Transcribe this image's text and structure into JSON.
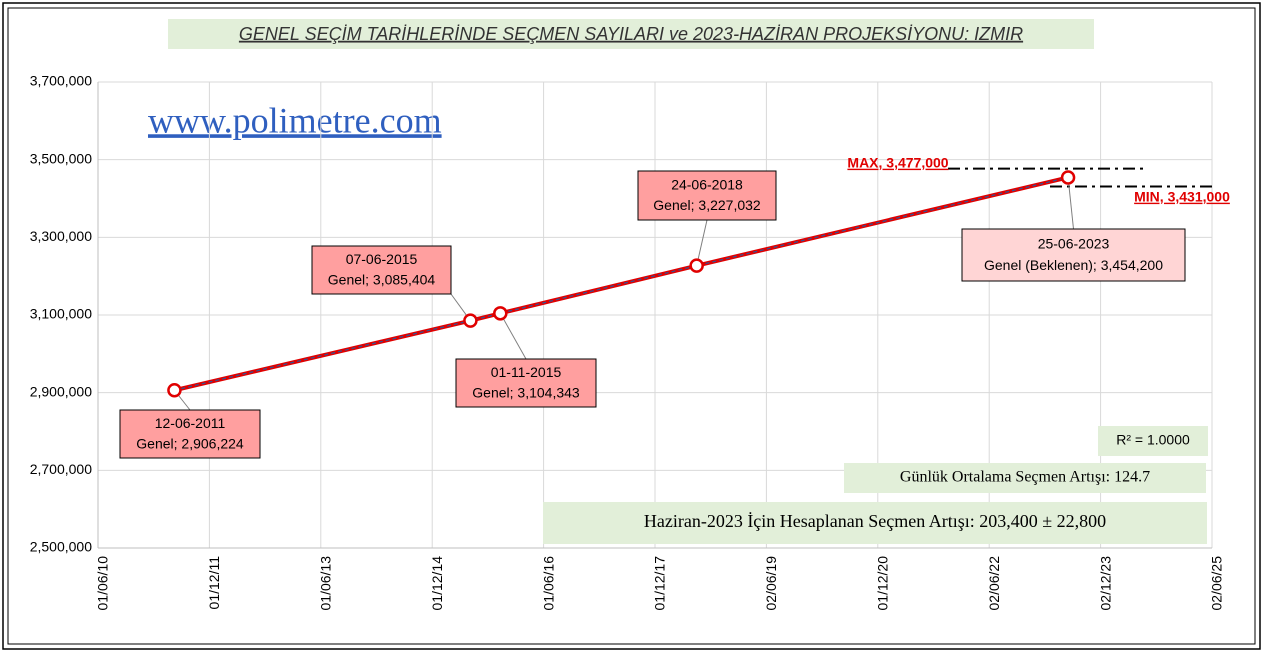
{
  "chart_data": {
    "type": "line",
    "title": "GENEL SEÇİM TARİHLERİNDE  SEÇMEN SAYILARI ve 2023-HAZİRAN PROJEKSİYONU: IZMIR",
    "watermark": "www.polimetre.com",
    "x": [
      "2011-06-12",
      "2015-06-07",
      "2015-11-01",
      "2018-06-24",
      "2023-06-25"
    ],
    "labels": [
      "12-06-2011",
      "07-06-2015",
      "01-11-2015",
      "24-06-2018",
      "25-06-2023"
    ],
    "series": [
      {
        "name": "Genel",
        "color": "#e00000",
        "values": [
          2906224,
          3085404,
          3104343,
          3227032,
          3454200
        ],
        "value_labels": [
          "Genel; 2,906,224",
          "Genel; 3,085,404",
          "Genel; 3,104,343",
          "Genel; 3,227,032",
          "Genel (Beklenen); 3,454,200"
        ]
      }
    ],
    "bounds": [
      {
        "label": "MAX, 3,477,000",
        "value": 3477000
      },
      {
        "label": "MIN, 3,431,000",
        "value": 3431000
      }
    ],
    "annotations": [
      "R² = 1.0000",
      "Günlük Ortalama Seçmen Artışı:  124.7",
      "Haziran-2023 İçin Hesaplanan Seçmen Artışı: 203,400 ± 22,800"
    ],
    "xlim": [
      "2010-06-01",
      "2025-06-02"
    ],
    "xticks": [
      {
        "value": "2010-06-01",
        "label": "01/06/10"
      },
      {
        "value": "2011-12-01",
        "label": "01/12/11"
      },
      {
        "value": "2013-06-01",
        "label": "01/06/13"
      },
      {
        "value": "2014-12-01",
        "label": "01/12/14"
      },
      {
        "value": "2016-06-01",
        "label": "01/06/16"
      },
      {
        "value": "2017-12-01",
        "label": "01/12/17"
      },
      {
        "value": "2019-06-02",
        "label": "02/06/19"
      },
      {
        "value": "2020-12-01",
        "label": "01/12/20"
      },
      {
        "value": "2022-06-02",
        "label": "02/06/22"
      },
      {
        "value": "2023-12-02",
        "label": "02/12/23"
      },
      {
        "value": "2025-06-02",
        "label": "02/06/25"
      }
    ],
    "ylim": [
      2500000,
      3700000
    ],
    "yticks": [
      {
        "value": 2500000,
        "label": "2,500,000"
      },
      {
        "value": 2700000,
        "label": "2,700,000"
      },
      {
        "value": 2900000,
        "label": "2,900,000"
      },
      {
        "value": 3100000,
        "label": "3,100,000"
      },
      {
        "value": 3300000,
        "label": "3,300,000"
      },
      {
        "value": 3500000,
        "label": "3,500,000"
      },
      {
        "value": 3700000,
        "label": "3,700,000"
      }
    ],
    "grid": true
  }
}
